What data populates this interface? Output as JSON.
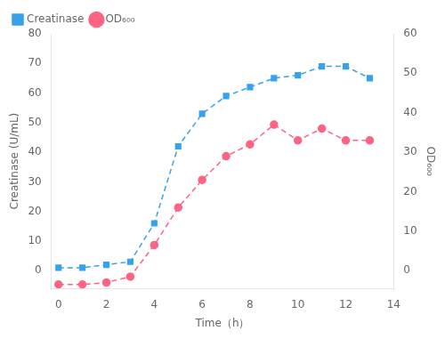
{
  "chart_data": {
    "type": "line",
    "x": [
      0,
      1,
      2,
      3,
      4,
      5,
      6,
      7,
      8,
      9,
      10,
      11,
      12,
      13
    ],
    "xlabel": "Time（h）",
    "ylabel": "Creatinase (U/mL)",
    "y2label": "OD₆₀₀",
    "xlim": [
      -0.3,
      14
    ],
    "xticks": [
      0,
      2,
      4,
      6,
      8,
      10,
      12,
      14
    ],
    "ylim": [
      -6,
      80
    ],
    "yticks": [
      0,
      10,
      20,
      30,
      40,
      50,
      60,
      70,
      80
    ],
    "y2lim": [
      -4.5,
      60
    ],
    "y2ticks": [
      0,
      10,
      20,
      30,
      40,
      50,
      60
    ],
    "grid": false,
    "legend": "upper left",
    "series": [
      {
        "name": "Creatinase",
        "values": [
          1,
          1,
          2,
          3,
          16,
          42,
          53,
          59,
          62,
          65,
          66,
          69,
          69,
          65
        ],
        "marker": "square",
        "line_style": "dashed"
      },
      {
        "name": "OD₆₀₀",
        "values": [
          -3.5,
          -3.5,
          -3,
          -1.5,
          6.5,
          16,
          23,
          29,
          32,
          37,
          33,
          36,
          33,
          33
        ],
        "axis": "y2",
        "marker": "circle",
        "line_style": "dashed"
      }
    ]
  }
}
